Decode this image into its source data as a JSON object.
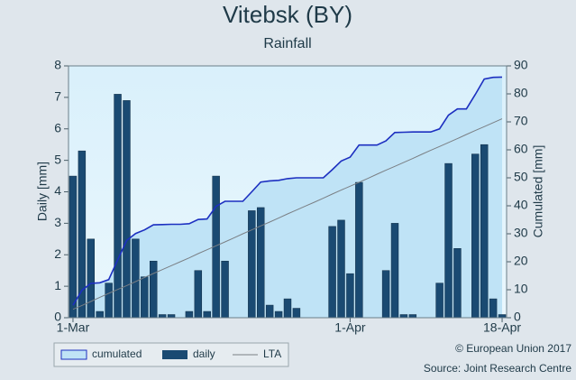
{
  "chart_data": {
    "type": "bar",
    "title": "Vitebsk (BY)",
    "subtitle": "Rainfall",
    "ylabel": "Daily [mm]",
    "y2label": "Cumulated [mm]",
    "categories": [
      "1-Mar",
      null,
      null,
      null,
      null,
      null,
      null,
      null,
      null,
      null,
      null,
      null,
      null,
      null,
      null,
      null,
      null,
      null,
      null,
      null,
      null,
      null,
      null,
      null,
      null,
      null,
      null,
      null,
      null,
      null,
      null,
      "1-Apr",
      null,
      null,
      null,
      null,
      null,
      null,
      null,
      null,
      null,
      null,
      null,
      null,
      null,
      null,
      null,
      null,
      "18-Apr"
    ],
    "series": [
      {
        "name": "cumulated",
        "type": "area",
        "axis": "y2",
        "color": "#1c2fc0",
        "fill": "#bfe3f6",
        "values": [
          4.5,
          9.8,
          12.3,
          12.5,
          13.6,
          20.7,
          27.6,
          30.1,
          31.4,
          33.2,
          33.3,
          33.4,
          33.4,
          33.6,
          35.1,
          35.3,
          39.8,
          41.6,
          41.6,
          41.6,
          45,
          48.5,
          48.9,
          49.1,
          49.7,
          50,
          50,
          50,
          50,
          52.9,
          56,
          57.4,
          61.7,
          61.7,
          61.7,
          63.2,
          66.2,
          66.3,
          66.4,
          66.4,
          66.4,
          67.5,
          72.4,
          74.6,
          74.6,
          79.8,
          85.3,
          85.9,
          86
        ]
      },
      {
        "name": "daily",
        "type": "bar",
        "color": "#1a4a72",
        "values": [
          4.5,
          5.3,
          2.5,
          0.2,
          1.1,
          7.1,
          6.9,
          2.5,
          1.3,
          1.8,
          0.1,
          0.1,
          0,
          0.2,
          1.5,
          0.2,
          4.5,
          1.8,
          0,
          0,
          3.4,
          3.5,
          0.4,
          0.2,
          0.6,
          0.3,
          0,
          0,
          0,
          2.9,
          3.1,
          1.4,
          4.3,
          0,
          0,
          1.5,
          3.0,
          0.1,
          0.1,
          0,
          0,
          1.1,
          4.9,
          2.2,
          0,
          5.2,
          5.5,
          0.6,
          0.1
        ]
      },
      {
        "name": "LTA",
        "type": "line",
        "axis": "y2",
        "color": "#7a7f84",
        "values": [
          3,
          4.4,
          5.8,
          7.3,
          8.7,
          10.1,
          11.5,
          12.9,
          14.4,
          15.8,
          17.2,
          18.6,
          20,
          21.4,
          22.9,
          24.3,
          25.7,
          27.1,
          28.5,
          30,
          31.4,
          32.8,
          34.2,
          35.6,
          37.1,
          38.5,
          39.9,
          41.3,
          42.7,
          44.2,
          45.6,
          47,
          48.4,
          49.8,
          51.3,
          52.7,
          54.1,
          55.5,
          56.9,
          58.4,
          59.8,
          61.2,
          62.6,
          64,
          65.5,
          66.9,
          68.3,
          69.7,
          71.1
        ]
      }
    ],
    "ylim": [
      0,
      8
    ],
    "yticks": [
      0,
      1,
      2,
      3,
      4,
      5,
      6,
      7,
      8
    ],
    "y2lim": [
      0,
      90
    ],
    "y2ticks": [
      0,
      10,
      20,
      30,
      40,
      50,
      60,
      70,
      80,
      90
    ],
    "footer": [
      "© European Union 2017",
      "Source: Joint Research Centre"
    ]
  }
}
